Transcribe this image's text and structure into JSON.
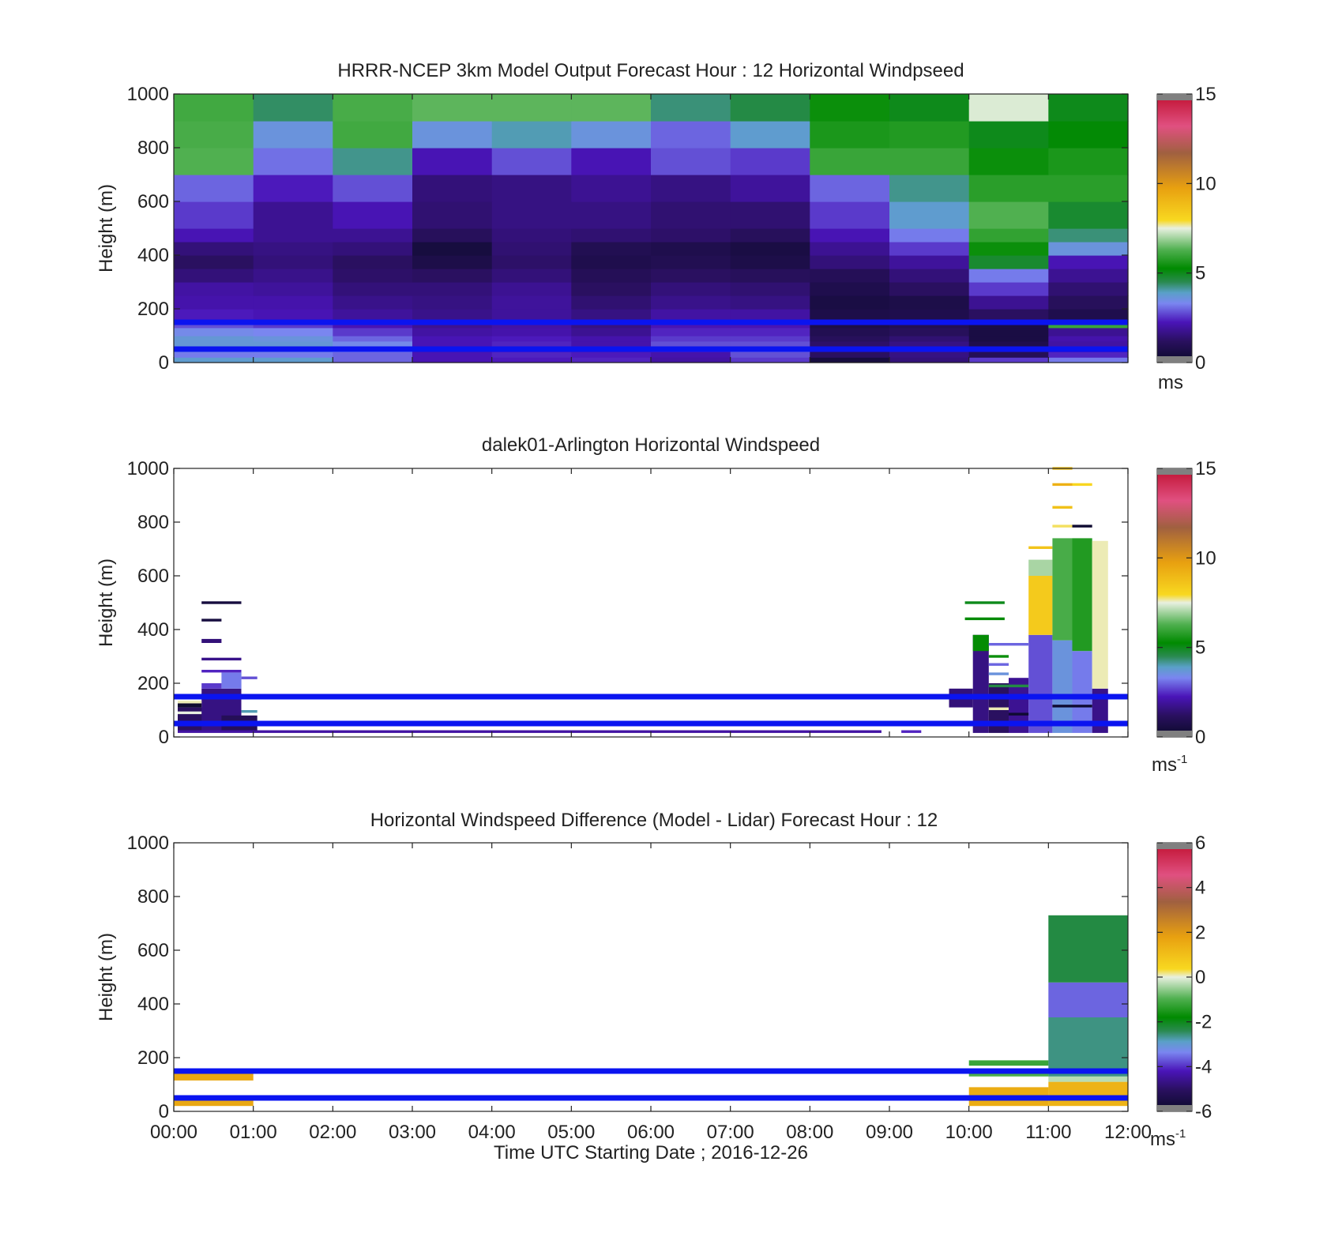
{
  "figure": {
    "xlabel": "Time UTC  Starting Date ; 2016-12-26",
    "x_ticks": [
      "00:00",
      "01:00",
      "02:00",
      "03:00",
      "04:00",
      "05:00",
      "06:00",
      "07:00",
      "08:00",
      "09:00",
      "10:00",
      "11:00",
      "12:00"
    ]
  },
  "chart_data": [
    {
      "type": "heatmap",
      "title": "HRRR-NCEP 3km Model Output   Forecast Hour : 12 Horizontal Windpseed",
      "xlabel": "",
      "ylabel": "Height (m)",
      "xlim_hours": [
        0,
        12
      ],
      "ylim": [
        0,
        1000
      ],
      "y_ticks": [
        "0",
        "200",
        "400",
        "600",
        "800",
        "1000"
      ],
      "colorbar": {
        "min": 0,
        "max": 15,
        "ticks": [
          "0",
          "5",
          "10",
          "15"
        ],
        "tick_values": [
          0,
          5,
          10,
          15
        ],
        "unit": "ms",
        "unit_sup": ""
      },
      "hour_columns": [
        0,
        1,
        2,
        3,
        4,
        5,
        6,
        7,
        8,
        9,
        10,
        11
      ],
      "levels_m": [
        0,
        20,
        40,
        60,
        80,
        100,
        130,
        160,
        200,
        250,
        300,
        350,
        400,
        450,
        500,
        600,
        700,
        800,
        900,
        1000
      ],
      "values": [
        [
          3.8,
          3.8,
          3.0,
          2.2,
          2.3,
          2.4,
          2.0,
          2.6,
          0.5,
          1.5,
          2.6,
          3.2
        ],
        [
          3.2,
          3.2,
          3.0,
          2.2,
          2.4,
          2.3,
          2.1,
          2.8,
          1.2,
          1.6,
          1.0,
          2.4
        ],
        [
          3.5,
          3.5,
          3.3,
          2.1,
          2.3,
          2.2,
          2.3,
          3.0,
          1.3,
          1.7,
          1.2,
          2.2
        ],
        [
          3.7,
          3.7,
          3.4,
          2.2,
          2.4,
          2.1,
          2.8,
          2.8,
          1.3,
          1.6,
          0.8,
          2.0
        ],
        [
          3.7,
          3.6,
          3.0,
          2.2,
          2.3,
          2.1,
          2.6,
          2.6,
          1.1,
          1.4,
          0.6,
          2.1
        ],
        [
          3.4,
          3.3,
          2.6,
          2.0,
          2.1,
          1.8,
          2.4,
          2.4,
          0.9,
          1.1,
          0.6,
          1.8
        ],
        [
          2.8,
          2.6,
          2.2,
          1.8,
          2.0,
          1.6,
          2.2,
          2.2,
          0.7,
          0.9,
          0.6,
          6.0
        ],
        [
          2.3,
          2.2,
          1.9,
          1.7,
          1.9,
          1.6,
          2.0,
          2.0,
          0.7,
          0.8,
          1.2,
          0.8
        ],
        [
          2.1,
          2.1,
          1.7,
          1.6,
          1.9,
          1.4,
          1.7,
          1.6,
          0.6,
          0.7,
          1.8,
          1.1
        ],
        [
          2.0,
          1.9,
          1.5,
          1.5,
          1.8,
          1.2,
          1.5,
          1.4,
          0.8,
          1.2,
          2.6,
          1.4
        ],
        [
          1.5,
          1.7,
          1.3,
          1.2,
          1.5,
          1.0,
          1.2,
          1.1,
          1.0,
          1.5,
          3.2,
          1.8
        ],
        [
          1.2,
          1.5,
          1.2,
          0.7,
          1.3,
          0.8,
          0.9,
          0.7,
          1.5,
          1.9,
          4.8,
          2.2
        ],
        [
          1.5,
          1.6,
          1.5,
          0.5,
          1.4,
          0.9,
          0.8,
          0.6,
          1.8,
          2.6,
          5.4,
          3.6
        ],
        [
          2.2,
          1.8,
          1.8,
          1.1,
          1.5,
          1.4,
          1.3,
          1.1,
          2.2,
          3.2,
          5.9,
          4.3
        ],
        [
          2.6,
          1.8,
          2.2,
          1.4,
          1.6,
          1.6,
          1.4,
          1.4,
          2.6,
          3.8,
          6.3,
          4.8
        ],
        [
          3.0,
          2.3,
          2.8,
          1.5,
          1.6,
          1.8,
          1.6,
          1.9,
          3.0,
          4.2,
          5.8,
          5.8
        ],
        [
          6.3,
          3.1,
          4.2,
          2.2,
          2.8,
          2.2,
          2.8,
          2.6,
          6.0,
          6.0,
          5.4,
          5.6
        ],
        [
          6.2,
          3.6,
          6.1,
          3.6,
          4.0,
          3.6,
          3.0,
          3.8,
          5.6,
          5.7,
          5.0,
          5.2
        ],
        [
          6.1,
          4.4,
          6.2,
          6.4,
          6.4,
          6.4,
          4.3,
          4.6,
          5.4,
          5.0,
          7.4,
          5.0
        ]
      ],
      "reference_lines_m": [
        50,
        150
      ]
    },
    {
      "type": "heatmap",
      "title": "dalek01-Arlington  Horizontal Windspeed",
      "xlabel": "",
      "ylabel": "Height (m)",
      "xlim_hours": [
        0,
        12
      ],
      "ylim": [
        0,
        1000
      ],
      "y_ticks": [
        "0",
        "200",
        "400",
        "600",
        "800",
        "1000"
      ],
      "colorbar": {
        "min": 0,
        "max": 15,
        "ticks": [
          "0",
          "5",
          "10",
          "15"
        ],
        "tick_values": [
          0,
          5,
          10,
          15
        ],
        "unit": "ms",
        "unit_sup": "-1"
      },
      "rows": [
        {
          "t0": 0.05,
          "t1": 8.9,
          "h0": 15,
          "h1": 25,
          "v": 2.0
        },
        {
          "t0": 0.05,
          "t1": 0.6,
          "h0": 25,
          "h1": 110,
          "v": 1.2
        },
        {
          "t0": 0.35,
          "t1": 0.85,
          "h0": 25,
          "h1": 180,
          "v": 1.6
        },
        {
          "t0": 0.6,
          "t1": 1.05,
          "h0": 25,
          "h1": 80,
          "v": 1.0
        },
        {
          "t0": 0.6,
          "t1": 0.85,
          "h0": 180,
          "h1": 240,
          "v": 3.2
        },
        {
          "t0": 0.35,
          "t1": 0.6,
          "h0": 180,
          "h1": 200,
          "v": 2.6
        },
        {
          "t0": 0.85,
          "t1": 1.05,
          "h0": 215,
          "h1": 225,
          "v": 2.8
        },
        {
          "t0": 0.35,
          "t1": 0.85,
          "h0": 240,
          "h1": 250,
          "v": 2.4
        },
        {
          "t0": 0.35,
          "t1": 0.85,
          "h0": 285,
          "h1": 295,
          "v": 1.7
        },
        {
          "t0": 0.35,
          "t1": 0.6,
          "h0": 350,
          "h1": 365,
          "v": 1.5
        },
        {
          "t0": 0.35,
          "t1": 0.6,
          "h0": 430,
          "h1": 440,
          "v": 0.5
        },
        {
          "t0": 0.35,
          "t1": 0.85,
          "h0": 495,
          "h1": 505,
          "v": 0.5
        },
        {
          "t0": 0.05,
          "t1": 0.35,
          "h0": 110,
          "h1": 125,
          "v": 0.2
        },
        {
          "t0": 0.05,
          "t1": 0.35,
          "h0": 85,
          "h1": 95,
          "v": 7.5
        },
        {
          "t0": 0.05,
          "t1": 0.35,
          "h0": 125,
          "h1": 135,
          "v": 7.6
        },
        {
          "t0": 0.85,
          "t1": 1.05,
          "h0": 90,
          "h1": 100,
          "v": 4.0
        },
        {
          "t0": 9.15,
          "t1": 9.4,
          "h0": 15,
          "h1": 25,
          "v": 2.4
        },
        {
          "t0": 9.15,
          "t1": 9.4,
          "h0": 40,
          "h1": 50,
          "v": 2.0
        },
        {
          "t0": 9.75,
          "t1": 10.05,
          "h0": 110,
          "h1": 180,
          "v": 1.5
        },
        {
          "t0": 10.05,
          "t1": 10.25,
          "h0": 15,
          "h1": 380,
          "v": 1.6
        },
        {
          "t0": 10.05,
          "t1": 10.25,
          "h0": 320,
          "h1": 380,
          "v": 5.3
        },
        {
          "t0": 10.25,
          "t1": 10.5,
          "h0": 15,
          "h1": 200,
          "v": 1.2
        },
        {
          "t0": 10.5,
          "t1": 10.75,
          "h0": 15,
          "h1": 220,
          "v": 1.8
        },
        {
          "t0": 10.75,
          "t1": 11.05,
          "h0": 15,
          "h1": 380,
          "v": 2.8
        },
        {
          "t0": 11.05,
          "t1": 11.3,
          "h0": 15,
          "h1": 360,
          "v": 3.6
        },
        {
          "t0": 11.3,
          "t1": 11.55,
          "h0": 15,
          "h1": 320,
          "v": 3.2
        },
        {
          "t0": 10.25,
          "t1": 10.5,
          "h0": 230,
          "h1": 240,
          "v": 3.6
        },
        {
          "t0": 10.25,
          "t1": 10.5,
          "h0": 265,
          "h1": 275,
          "v": 3.0
        },
        {
          "t0": 10.25,
          "t1": 10.5,
          "h0": 295,
          "h1": 305,
          "v": 5.4
        },
        {
          "t0": 10.25,
          "t1": 10.75,
          "h0": 340,
          "h1": 350,
          "v": 3.0
        },
        {
          "t0": 9.95,
          "t1": 10.45,
          "h0": 435,
          "h1": 445,
          "v": 5.2
        },
        {
          "t0": 9.95,
          "t1": 10.45,
          "h0": 495,
          "h1": 505,
          "v": 5.0
        },
        {
          "t0": 10.25,
          "t1": 10.75,
          "h0": 185,
          "h1": 195,
          "v": 4.6
        },
        {
          "t0": 10.75,
          "t1": 11.05,
          "h0": 380,
          "h1": 600,
          "v": 8.4
        },
        {
          "t0": 10.75,
          "t1": 11.05,
          "h0": 600,
          "h1": 660,
          "v": 7.0
        },
        {
          "t0": 10.75,
          "t1": 11.05,
          "h0": 700,
          "h1": 710,
          "v": 8.6
        },
        {
          "t0": 11.05,
          "t1": 11.3,
          "h0": 360,
          "h1": 740,
          "v": 6.2
        },
        {
          "t0": 11.3,
          "t1": 11.55,
          "h0": 320,
          "h1": 740,
          "v": 5.7
        },
        {
          "t0": 11.55,
          "t1": 11.75,
          "h0": 15,
          "h1": 180,
          "v": 1.7
        },
        {
          "t0": 11.55,
          "t1": 11.75,
          "h0": 180,
          "h1": 730,
          "v": 7.6
        },
        {
          "t0": 11.05,
          "t1": 11.3,
          "h0": 780,
          "h1": 790,
          "v": 7.8
        },
        {
          "t0": 11.3,
          "t1": 11.55,
          "h0": 780,
          "h1": 790,
          "v": 0.2
        },
        {
          "t0": 11.05,
          "t1": 11.3,
          "h0": 850,
          "h1": 860,
          "v": 8.7
        },
        {
          "t0": 11.05,
          "t1": 11.3,
          "h0": 935,
          "h1": 945,
          "v": 9.2
        },
        {
          "t0": 11.3,
          "t1": 11.55,
          "h0": 935,
          "h1": 945,
          "v": 8.0
        },
        {
          "t0": 11.05,
          "t1": 11.3,
          "h0": 995,
          "h1": 1005,
          "v": 8.8
        },
        {
          "t0": 11.05,
          "t1": 11.55,
          "h0": 110,
          "h1": 120,
          "v": 0.2
        },
        {
          "t0": 10.25,
          "t1": 10.5,
          "h0": 100,
          "h1": 110,
          "v": 7.6
        },
        {
          "t0": 10.5,
          "t1": 10.75,
          "h0": 80,
          "h1": 90,
          "v": 0.2
        }
      ],
      "reference_lines_m": [
        50,
        150
      ]
    },
    {
      "type": "heatmap",
      "title": "Horizontal Windspeed Difference (Model - Lidar) Forecast Hour : 12",
      "xlabel": "Time UTC  Starting Date ; 2016-12-26",
      "ylabel": "Height (m)",
      "xlim_hours": [
        0,
        12
      ],
      "ylim": [
        0,
        1000
      ],
      "y_ticks": [
        "0",
        "200",
        "400",
        "600",
        "800",
        "1000"
      ],
      "colorbar": {
        "min": -6,
        "max": 6,
        "ticks": [
          "-6",
          "-4",
          "-2",
          "0",
          "2",
          "4",
          "6"
        ],
        "tick_values": [
          -6,
          -4,
          -2,
          0,
          2,
          4,
          6
        ],
        "unit": "ms",
        "unit_sup": "-1"
      },
      "rows": [
        {
          "t0": 0,
          "t1": 1,
          "h0": 20,
          "h1": 40,
          "v": 1.6
        },
        {
          "t0": 0,
          "t1": 1,
          "h0": 115,
          "h1": 140,
          "v": 1.6
        },
        {
          "t0": 10,
          "t1": 11,
          "h0": 20,
          "h1": 90,
          "v": 1.5
        },
        {
          "t0": 10,
          "t1": 11,
          "h0": 130,
          "h1": 150,
          "v": -1.0
        },
        {
          "t0": 10,
          "t1": 11,
          "h0": 170,
          "h1": 190,
          "v": -1.2
        },
        {
          "t0": 11,
          "t1": 12,
          "h0": 20,
          "h1": 110,
          "v": 1.3
        },
        {
          "t0": 11,
          "t1": 12,
          "h0": 110,
          "h1": 130,
          "v": -0.3
        },
        {
          "t0": 11,
          "t1": 12,
          "h0": 130,
          "h1": 350,
          "v": -2.6
        },
        {
          "t0": 11,
          "t1": 12,
          "h0": 350,
          "h1": 480,
          "v": -3.6
        },
        {
          "t0": 11,
          "t1": 12,
          "h0": 480,
          "h1": 730,
          "v": -2.3
        }
      ],
      "reference_lines_m": [
        50,
        150
      ]
    }
  ]
}
